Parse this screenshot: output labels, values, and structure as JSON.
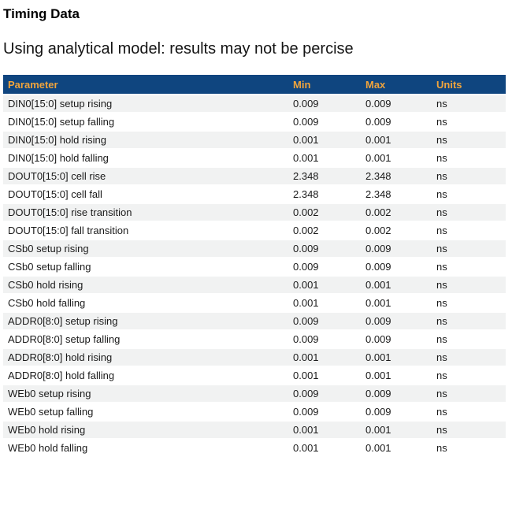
{
  "page": {
    "title": "Timing Data",
    "subtitle": "Using analytical model: results may not be percise"
  },
  "colors": {
    "header_bg": "#0f457f",
    "header_text": "#f0a43c",
    "row_alt_bg": "#f1f2f2",
    "row_text": "#1a1a1a"
  },
  "table": {
    "columns": [
      {
        "key": "parameter",
        "label": "Parameter"
      },
      {
        "key": "min",
        "label": "Min"
      },
      {
        "key": "max",
        "label": "Max"
      },
      {
        "key": "units",
        "label": "Units"
      }
    ],
    "rows": [
      {
        "parameter": "DIN0[15:0] setup rising",
        "min": "0.009",
        "max": "0.009",
        "units": "ns"
      },
      {
        "parameter": "DIN0[15:0] setup falling",
        "min": "0.009",
        "max": "0.009",
        "units": "ns"
      },
      {
        "parameter": "DIN0[15:0] hold rising",
        "min": "0.001",
        "max": "0.001",
        "units": "ns"
      },
      {
        "parameter": "DIN0[15:0] hold falling",
        "min": "0.001",
        "max": "0.001",
        "units": "ns"
      },
      {
        "parameter": "DOUT0[15:0] cell rise",
        "min": "2.348",
        "max": "2.348",
        "units": "ns"
      },
      {
        "parameter": "DOUT0[15:0] cell fall",
        "min": "2.348",
        "max": "2.348",
        "units": "ns"
      },
      {
        "parameter": "DOUT0[15:0] rise transition",
        "min": "0.002",
        "max": "0.002",
        "units": "ns"
      },
      {
        "parameter": "DOUT0[15:0] fall transition",
        "min": "0.002",
        "max": "0.002",
        "units": "ns"
      },
      {
        "parameter": "CSb0 setup rising",
        "min": "0.009",
        "max": "0.009",
        "units": "ns"
      },
      {
        "parameter": "CSb0 setup falling",
        "min": "0.009",
        "max": "0.009",
        "units": "ns"
      },
      {
        "parameter": "CSb0 hold rising",
        "min": "0.001",
        "max": "0.001",
        "units": "ns"
      },
      {
        "parameter": "CSb0 hold falling",
        "min": "0.001",
        "max": "0.001",
        "units": "ns"
      },
      {
        "parameter": "ADDR0[8:0] setup rising",
        "min": "0.009",
        "max": "0.009",
        "units": "ns"
      },
      {
        "parameter": "ADDR0[8:0] setup falling",
        "min": "0.009",
        "max": "0.009",
        "units": "ns"
      },
      {
        "parameter": "ADDR0[8:0] hold rising",
        "min": "0.001",
        "max": "0.001",
        "units": "ns"
      },
      {
        "parameter": "ADDR0[8:0] hold falling",
        "min": "0.001",
        "max": "0.001",
        "units": "ns"
      },
      {
        "parameter": "WEb0 setup rising",
        "min": "0.009",
        "max": "0.009",
        "units": "ns"
      },
      {
        "parameter": "WEb0 setup falling",
        "min": "0.009",
        "max": "0.009",
        "units": "ns"
      },
      {
        "parameter": "WEb0 hold rising",
        "min": "0.001",
        "max": "0.001",
        "units": "ns"
      },
      {
        "parameter": "WEb0 hold falling",
        "min": "0.001",
        "max": "0.001",
        "units": "ns"
      }
    ]
  }
}
